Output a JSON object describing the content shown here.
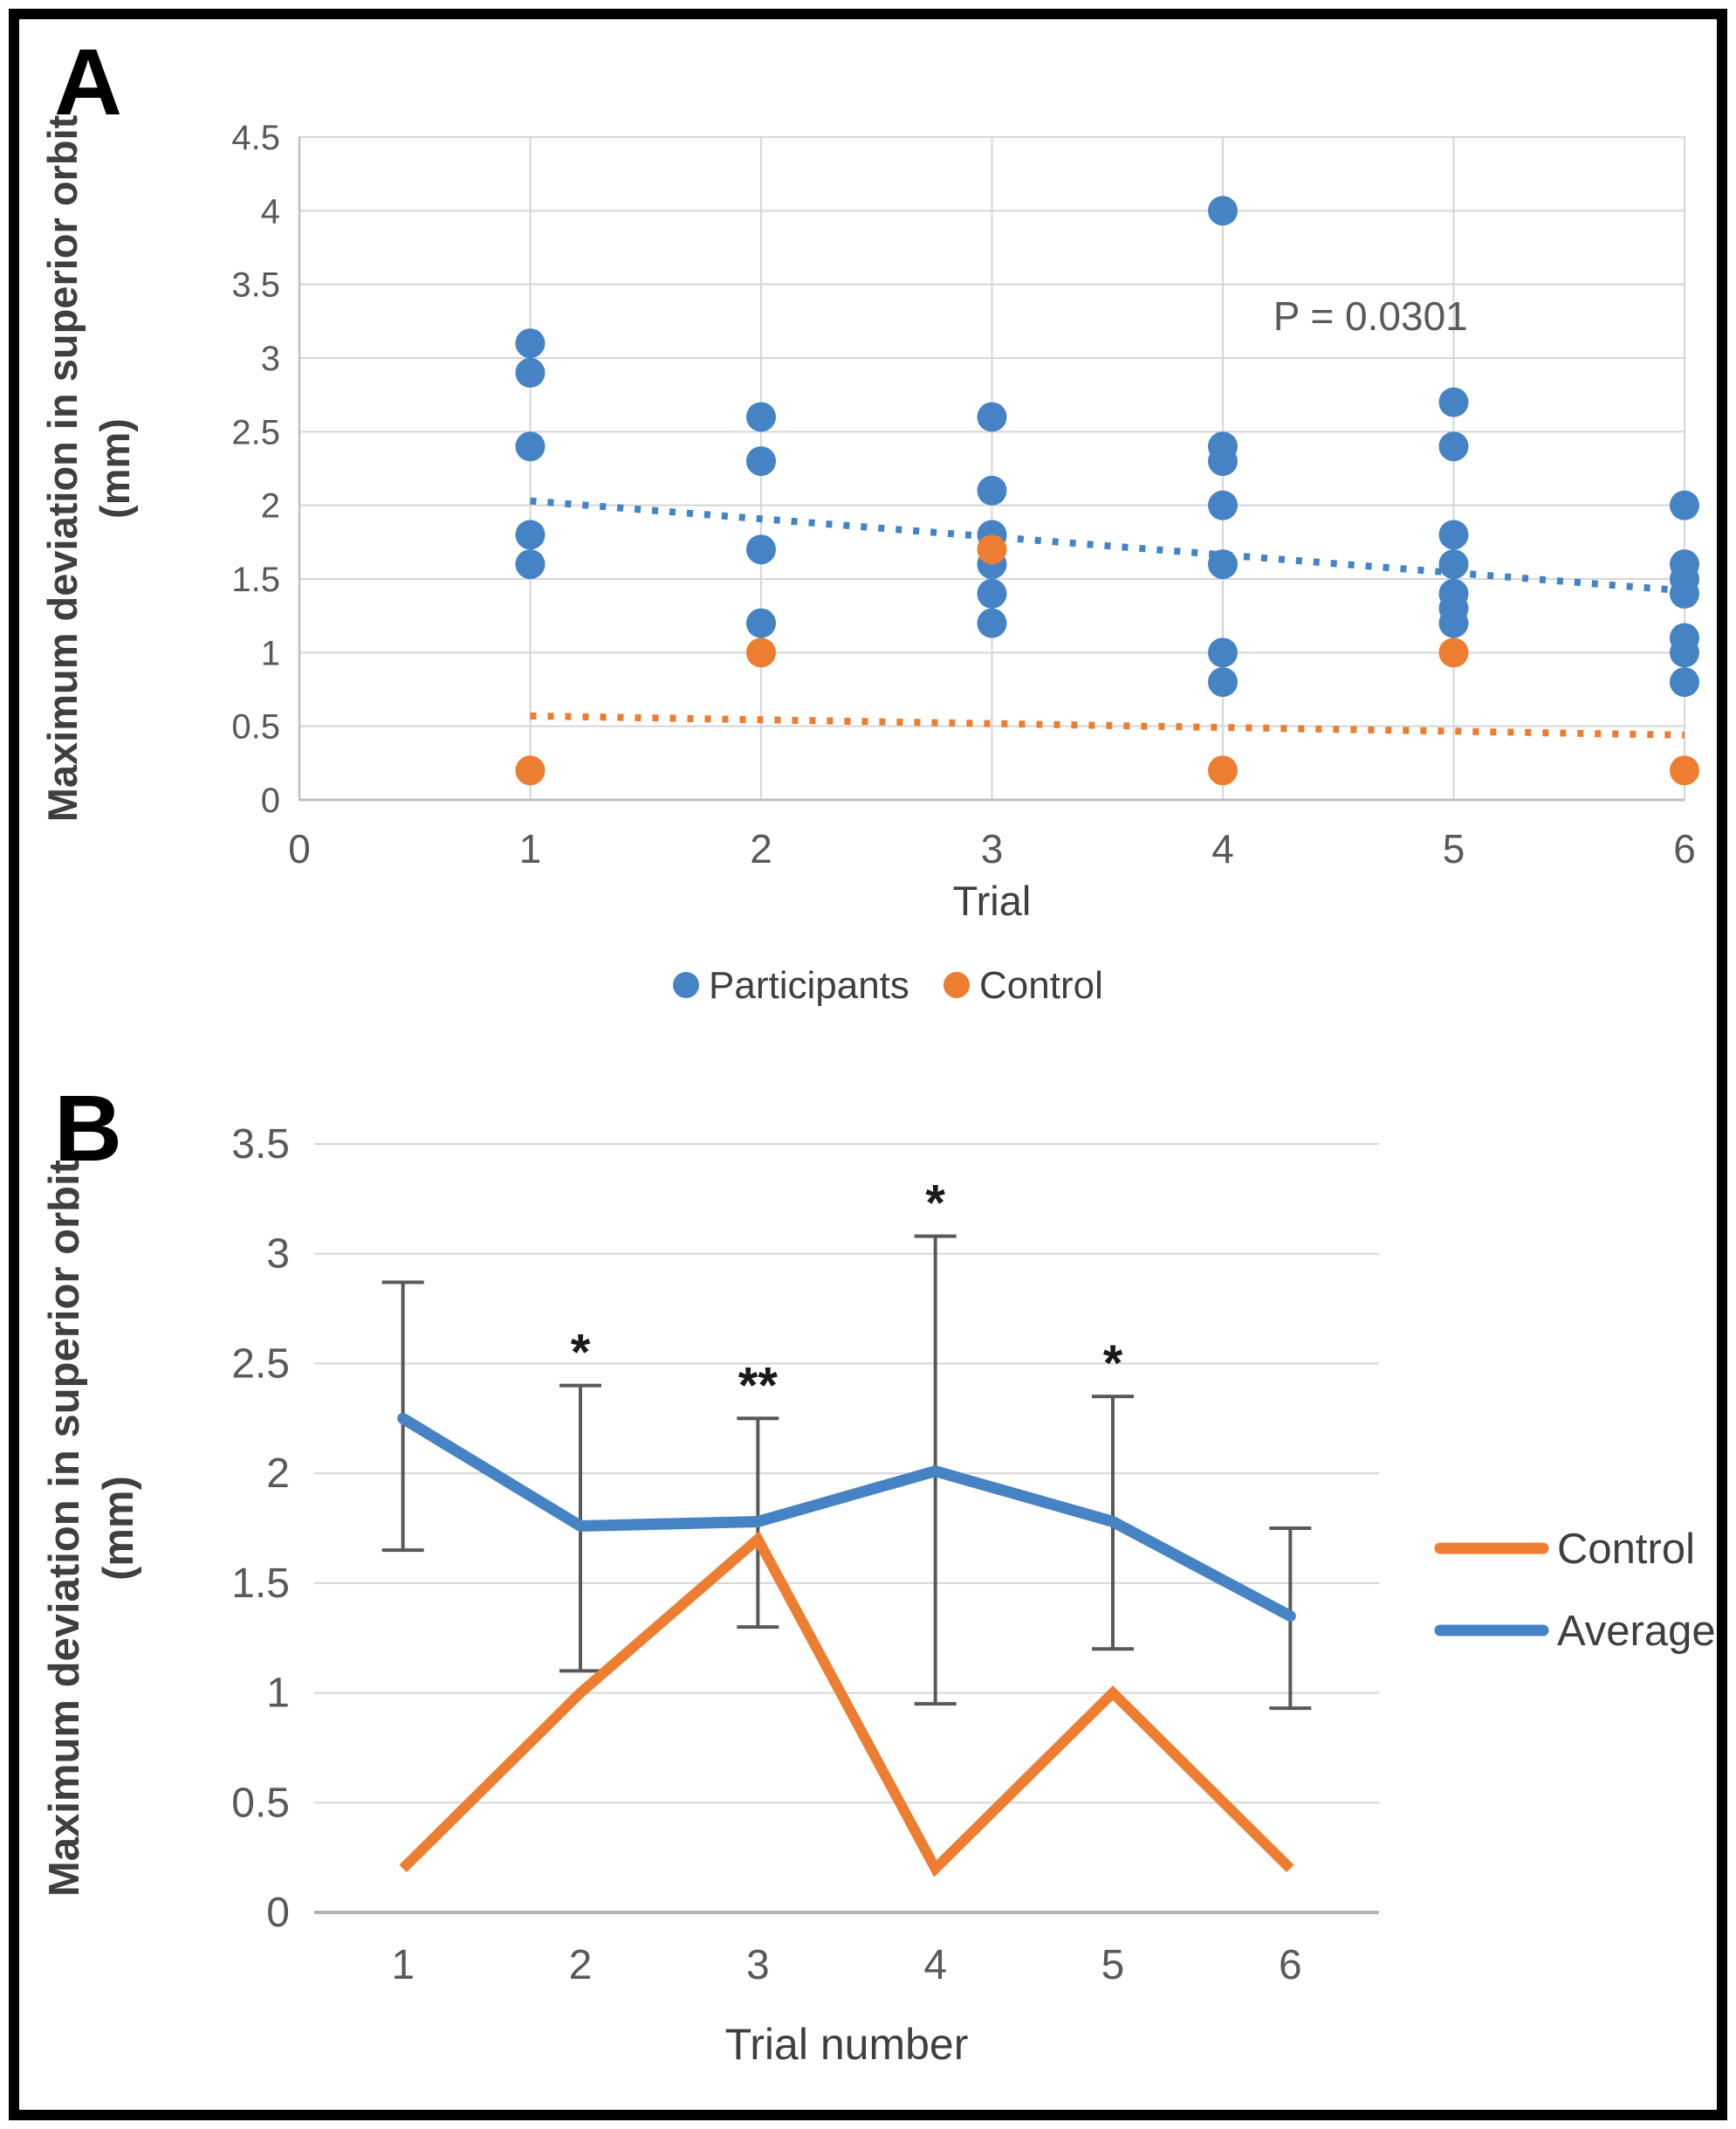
{
  "panels": {
    "a": {
      "letter": "A"
    },
    "b": {
      "letter": "B"
    }
  },
  "colors": {
    "participants_blue": "#4583C5",
    "control_orange": "#ED7D31",
    "gridline": "#D6D6D6",
    "axis_line": "#BFBFBF",
    "zero_axis": "#B3B3B3",
    "tick_text": "#595959",
    "title_text": "#3F3F3F",
    "error_bar": "#595959",
    "asterisk": "#1A1A1A",
    "frame_border": "#000000"
  },
  "chart_data": [
    {
      "id": "A",
      "type": "scatter",
      "title": "",
      "xlabel": "Trial",
      "ylabel_line1": "Maximum deviation in superior orbit",
      "ylabel_line2": "(mm)",
      "xlim": [
        0,
        6
      ],
      "ylim": [
        0,
        4.5
      ],
      "xticks": [
        0,
        1,
        2,
        3,
        4,
        5,
        6
      ],
      "yticks": [
        4.5,
        4,
        3.5,
        3,
        2.5,
        2,
        1.5,
        1,
        0.5,
        0
      ],
      "grid": "both",
      "annotation": {
        "text": "P = 0.0301",
        "x": 4.64,
        "y": 3.19
      },
      "series": [
        {
          "name": "Participants",
          "color_key": "participants_blue",
          "points": [
            [
              1,
              3.1
            ],
            [
              1,
              2.9
            ],
            [
              1,
              2.4
            ],
            [
              1,
              1.8
            ],
            [
              1,
              1.6
            ],
            [
              2,
              2.6
            ],
            [
              2,
              2.3
            ],
            [
              2,
              1.7
            ],
            [
              2,
              1.2
            ],
            [
              3,
              2.6
            ],
            [
              3,
              2.1
            ],
            [
              3,
              1.8
            ],
            [
              3,
              1.6
            ],
            [
              3,
              1.4
            ],
            [
              3,
              1.2
            ],
            [
              4,
              4.0
            ],
            [
              4,
              2.4
            ],
            [
              4,
              2.3
            ],
            [
              4,
              2.0
            ],
            [
              4,
              1.6
            ],
            [
              4,
              1.0
            ],
            [
              4,
              0.8
            ],
            [
              5,
              2.7
            ],
            [
              5,
              2.4
            ],
            [
              5,
              1.8
            ],
            [
              5,
              1.6
            ],
            [
              5,
              1.4
            ],
            [
              5,
              1.3
            ],
            [
              5,
              1.2
            ],
            [
              6,
              2.0
            ],
            [
              6,
              1.6
            ],
            [
              6,
              1.5
            ],
            [
              6,
              1.4
            ],
            [
              6,
              1.1
            ],
            [
              6,
              1.0
            ],
            [
              6,
              0.8
            ]
          ]
        },
        {
          "name": "Control",
          "color_key": "control_orange",
          "points": [
            [
              1,
              0.2
            ],
            [
              2,
              1.0
            ],
            [
              3,
              1.7
            ],
            [
              4,
              0.2
            ],
            [
              5,
              1.0
            ],
            [
              6,
              0.2
            ]
          ]
        }
      ],
      "trendlines": [
        {
          "series": "Participants",
          "color_key": "participants_blue",
          "x1": 1,
          "y1": 2.03,
          "x2": 6,
          "y2": 1.42
        },
        {
          "series": "Control",
          "color_key": "control_orange",
          "x1": 1,
          "y1": 0.57,
          "x2": 6,
          "y2": 0.44
        }
      ],
      "legend": {
        "position": "bottom",
        "items": [
          {
            "label": "Participants",
            "color_key": "participants_blue",
            "marker": "dot"
          },
          {
            "label": "Control",
            "color_key": "control_orange",
            "marker": "dot"
          }
        ]
      }
    },
    {
      "id": "B",
      "type": "line",
      "title": "",
      "xlabel": "Trial number",
      "ylabel_line1": "Maximum deviation in superior orbit",
      "ylabel_line2": "(mm)",
      "ylim": [
        0,
        3.5
      ],
      "yticks": [
        3.5,
        3,
        2.5,
        2,
        1.5,
        1,
        0.5,
        0
      ],
      "categories": [
        1,
        2,
        3,
        4,
        5,
        6
      ],
      "grid": "horizontal",
      "series": [
        {
          "name": "Control",
          "color_key": "control_orange",
          "values": [
            0.2,
            1.0,
            1.7,
            0.2,
            1.0,
            0.2
          ]
        },
        {
          "name": "Average",
          "color_key": "participants_blue",
          "values": [
            2.25,
            1.76,
            1.78,
            2.01,
            1.78,
            1.35
          ],
          "error_low": [
            1.65,
            1.1,
            1.3,
            0.95,
            1.2,
            0.93
          ],
          "error_high": [
            2.87,
            2.4,
            2.25,
            3.08,
            2.35,
            1.75
          ],
          "significance": [
            "",
            "*",
            "**",
            "*",
            "*",
            ""
          ]
        }
      ],
      "legend": {
        "position": "right",
        "items": [
          {
            "label": "Control",
            "color_key": "control_orange",
            "marker": "line"
          },
          {
            "label": "Average",
            "color_key": "participants_blue",
            "marker": "line"
          }
        ]
      }
    }
  ]
}
